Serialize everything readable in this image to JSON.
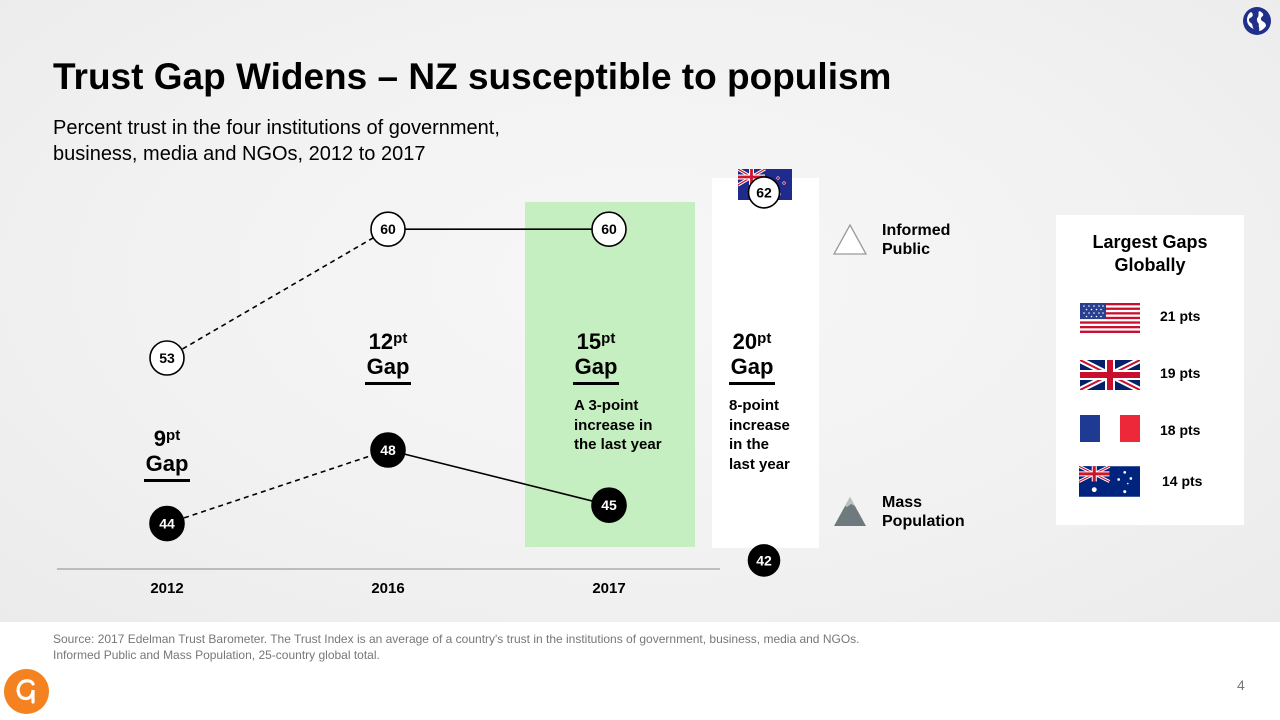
{
  "slide": {
    "title": "Trust Gap Widens – NZ susceptible to populism",
    "subtitle_line1": "Percent trust in the four institutions of government,",
    "subtitle_line2": "business, media and NGOs, 2012 to 2017",
    "page_number": "4",
    "source_line1": "Source: 2017 Edelman Trust Barometer. The Trust Index is an average of a country's trust in the institutions of government, business, media and NGOs.",
    "source_line2": "Informed Public and Mass Population, 25-country global total."
  },
  "chart_data": {
    "type": "line",
    "title": "Percent trust in the four institutions of government, business, media and NGOs, 2012 to 2017",
    "categories": [
      "2012",
      "2016",
      "2017"
    ],
    "series": [
      {
        "name": "Informed Public",
        "values": [
          53,
          60,
          60
        ],
        "labels": [
          "53",
          "60",
          "60"
        ]
      },
      {
        "name": "Mass Population",
        "values": [
          44,
          48,
          45
        ],
        "labels": [
          "44",
          "48",
          "45"
        ]
      }
    ],
    "highlight_category": "2017",
    "nz_column": {
      "informed": 62,
      "informed_label": "62",
      "mass": 42,
      "mass_label": "42"
    },
    "ylim": [
      38,
      66
    ],
    "gaps": [
      {
        "num": "9",
        "sup": "pt",
        "word": "Gap"
      },
      {
        "num": "12",
        "sup": "pt",
        "word": "Gap"
      },
      {
        "num": "15",
        "sup": "pt",
        "word": "Gap"
      },
      {
        "num": "20",
        "sup": "pt",
        "word": "Gap"
      }
    ],
    "notes": {
      "y2017": [
        "A 3-point",
        "increase in",
        "the last year"
      ],
      "nz": [
        "8-point",
        "increase",
        "in the",
        "last year"
      ]
    },
    "legend": {
      "informed_line1": "Informed",
      "informed_line2": "Public",
      "mass_line1": "Mass",
      "mass_line2": "Population"
    }
  },
  "largest_gaps": {
    "title_line1": "Largest Gaps",
    "title_line2": "Globally",
    "items": [
      {
        "country": "United States",
        "value": "21 pts"
      },
      {
        "country": "United Kingdom",
        "value": "19 pts"
      },
      {
        "country": "France",
        "value": "18 pts"
      },
      {
        "country": "Australia",
        "value": "14 pts"
      }
    ]
  },
  "colors": {
    "highlight": "#c6efc1",
    "brand_orange": "#f58220",
    "globe_blue": "#1f2f8a"
  }
}
